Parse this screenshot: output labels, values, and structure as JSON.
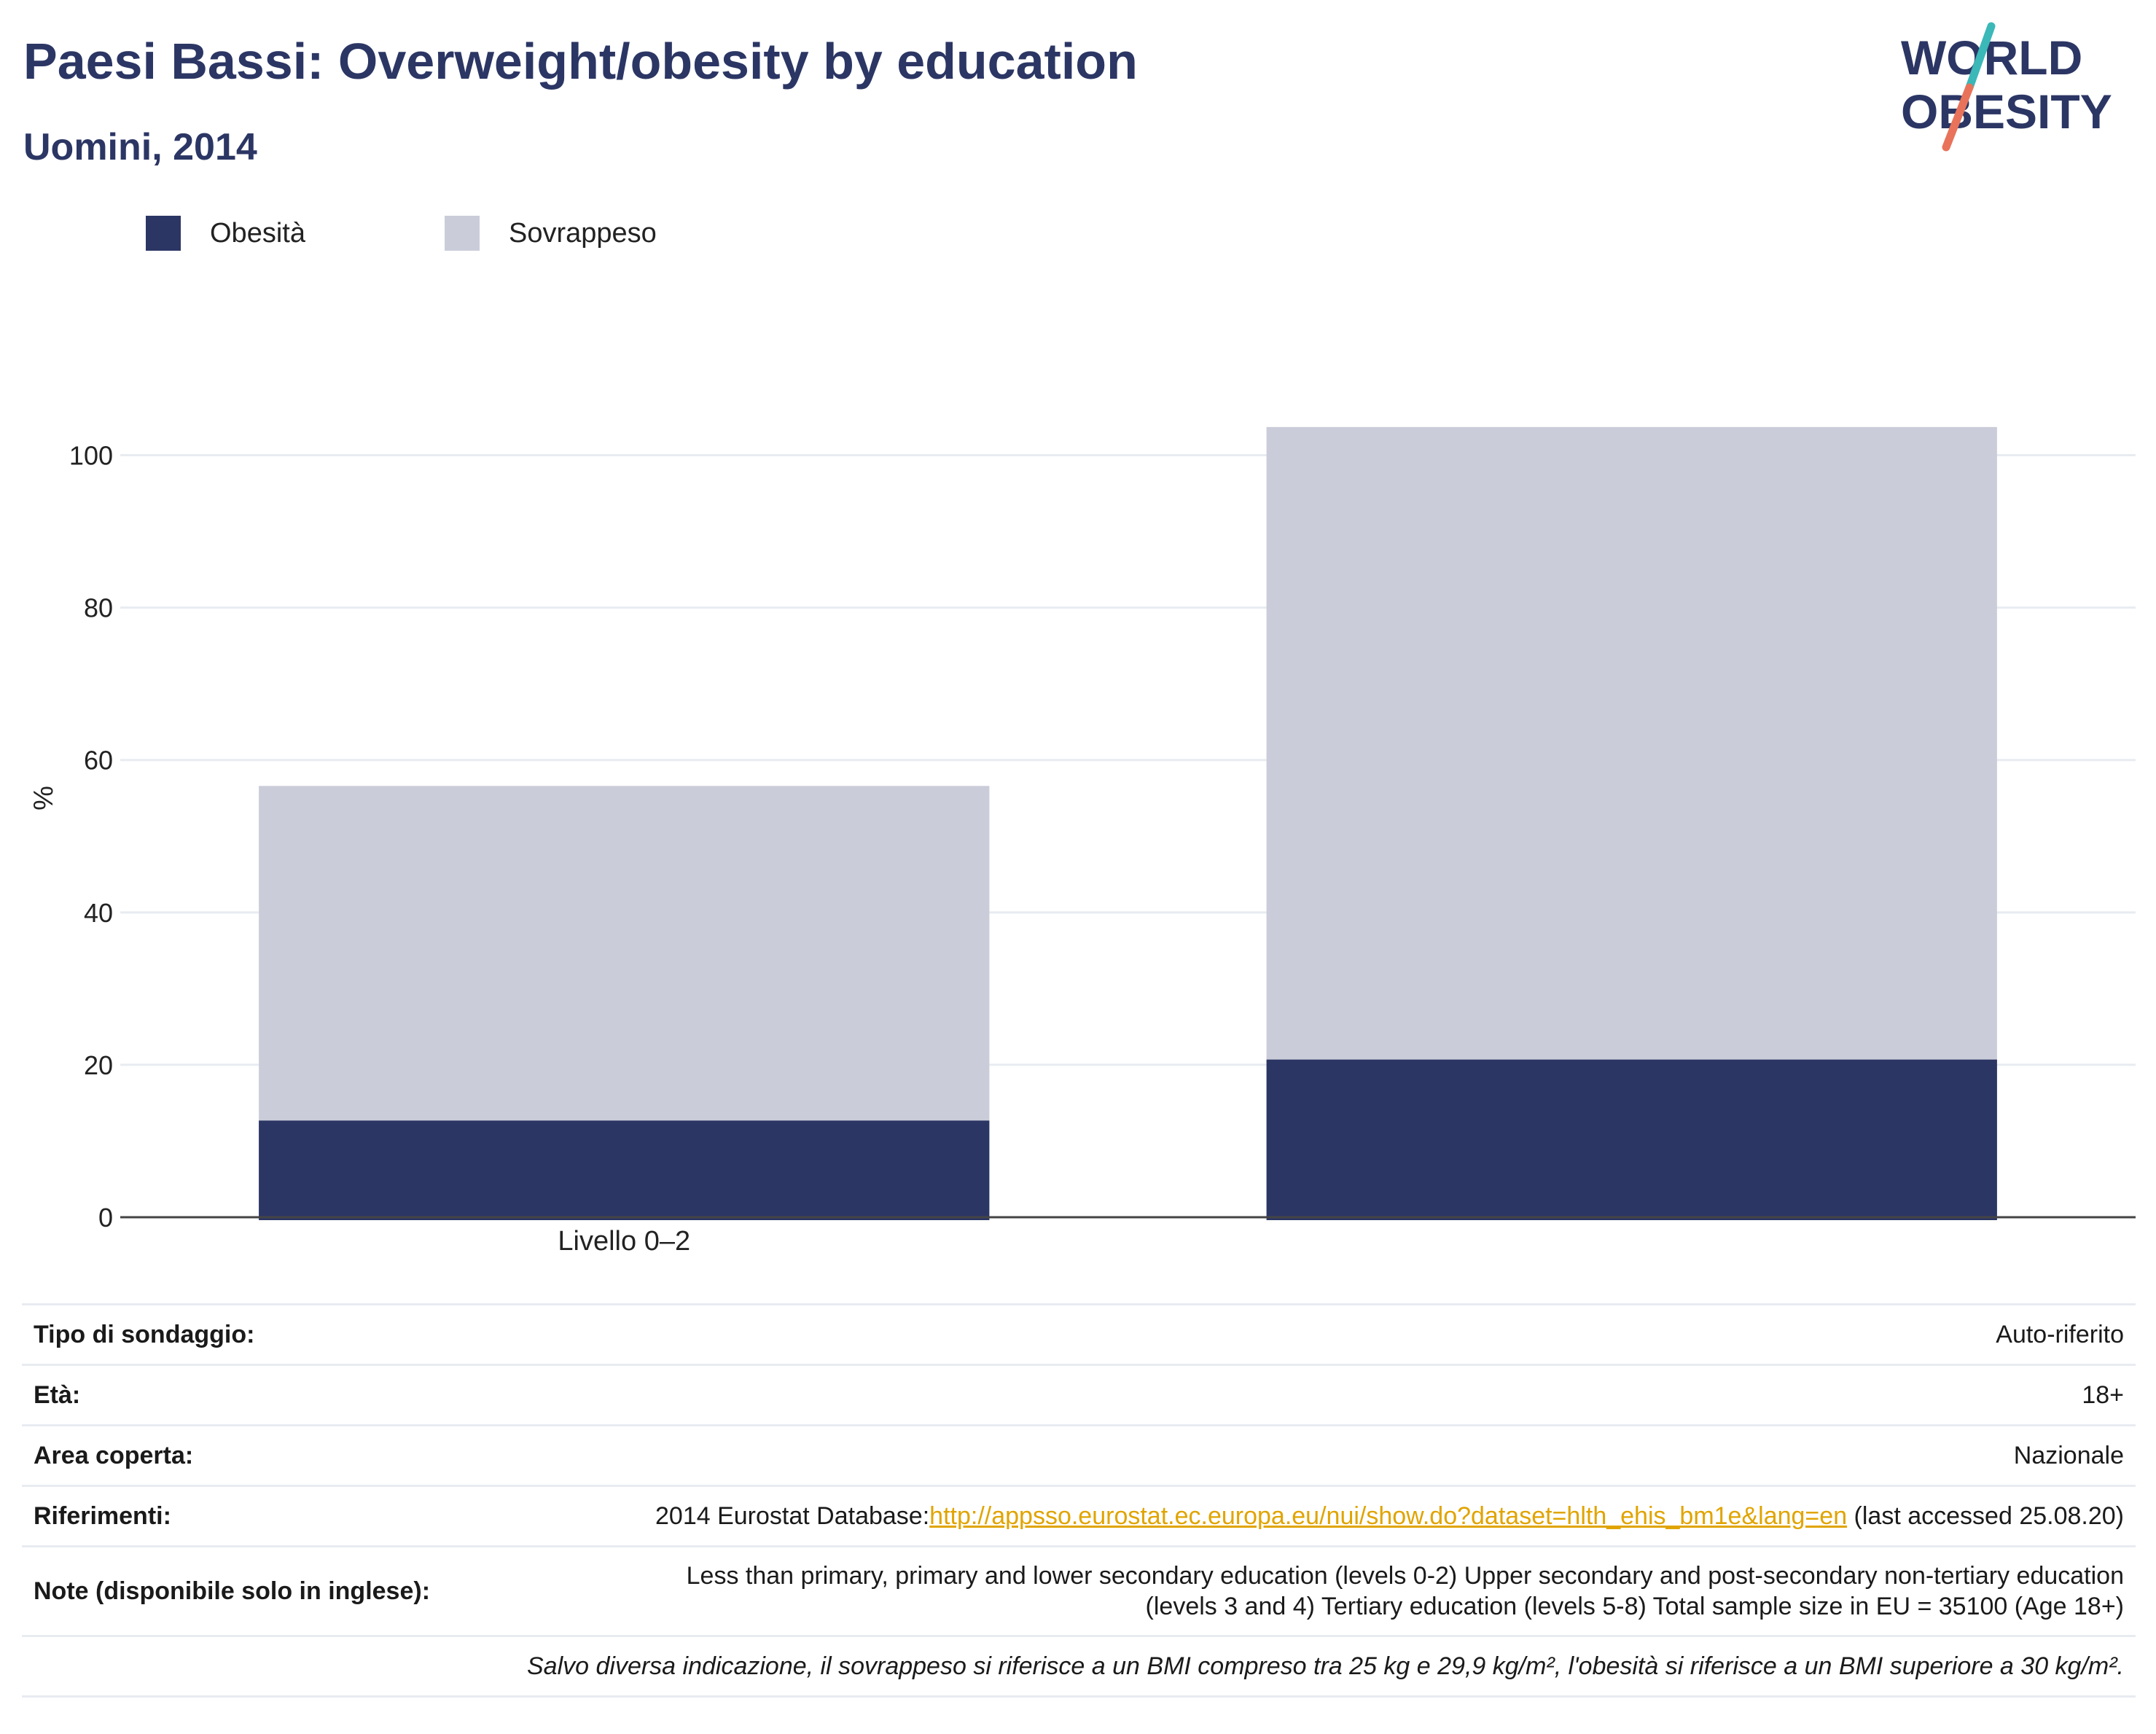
{
  "header": {
    "title": "Paesi Bassi: Overweight/obesity by education",
    "subtitle": "Uomini, 2014"
  },
  "logo": {
    "line1": "WORLD",
    "line2": "OBESITY",
    "colors": {
      "text": "#2b3664",
      "slash_top": "#3bb8b8",
      "slash_bottom": "#e8735a"
    }
  },
  "legend": [
    {
      "label": "Obesità",
      "color": "#2b3664"
    },
    {
      "label": "Sovrappeso",
      "color": "#cacdd9"
    }
  ],
  "chart_data": {
    "type": "bar",
    "stacked": true,
    "categories": [
      "Livello 0–2",
      ""
    ],
    "series": [
      {
        "name": "Obesità",
        "values": [
          12.7,
          20.7
        ],
        "color": "#2b3664"
      },
      {
        "name": "Sovrappeso",
        "values": [
          43.9,
          83.0
        ],
        "color": "#cacdd9"
      }
    ],
    "ylabel": "%",
    "ylim": [
      0,
      110
    ],
    "yticks": [
      0,
      20,
      40,
      60,
      80,
      100
    ],
    "grid": true,
    "legend_position": "top-left"
  },
  "info": {
    "rows": [
      {
        "key": "Tipo di sondaggio:",
        "value": "Auto-riferito"
      },
      {
        "key": "Età:",
        "value": "18+"
      },
      {
        "key": "Area coperta:",
        "value": "Nazionale"
      }
    ],
    "references": {
      "key": "Riferimenti:",
      "prefix": "2014 Eurostat Database:",
      "link": "http://appsso.eurostat.ec.europa.eu/nui/show.do?dataset=hlth_ehis_bm1e&lang=en",
      "suffix": " (last accessed 25.08.20)"
    },
    "notes": {
      "key": "Note (disponibile solo in inglese):",
      "line1": "Less than primary, primary and lower secondary education (levels 0-2) Upper secondary and post-secondary non-tertiary education",
      "line2": "(levels 3 and 4) Tertiary education (levels 5-8) Total sample size in EU = 35100 (Age 18+)"
    },
    "footnote": "Salvo diversa indicazione, il sovrappeso si riferisce a un BMI compreso tra 25 kg e 29,9 kg/m², l'obesità si riferisce a un BMI superiore a 30 kg/m²."
  }
}
